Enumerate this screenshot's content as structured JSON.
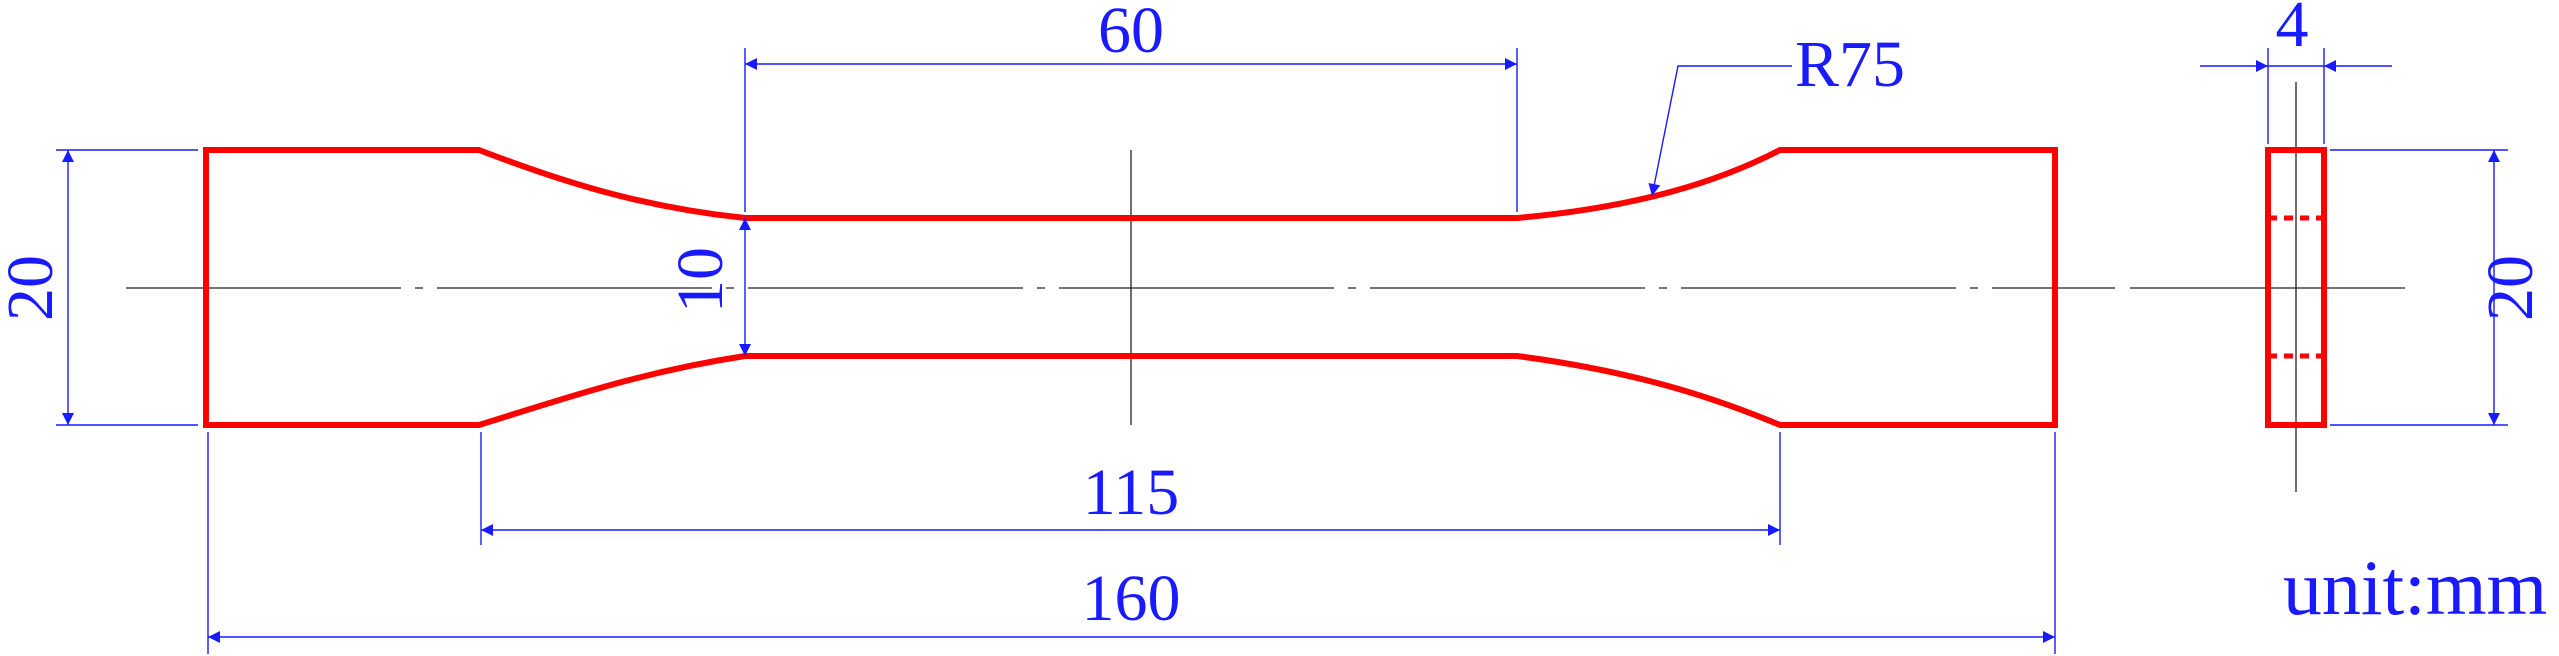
{
  "dimensions": {
    "gauge_length": "60",
    "parallel_length": "115",
    "overall_length": "160",
    "grip_width": "20",
    "gauge_width": "10",
    "fillet_radius": "R75",
    "thickness": "4",
    "side_width": "20"
  },
  "unit_label": "unit:mm",
  "colors": {
    "outline": "#ff0000",
    "dimension": "#1a1aff",
    "centerline": "#222222"
  }
}
